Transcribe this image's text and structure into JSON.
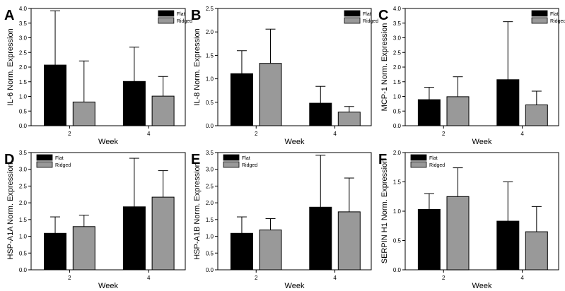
{
  "colors": {
    "flat": "#000000",
    "ridged": "#999999",
    "axis": "#000000"
  },
  "chart_data": [
    {
      "type": "bar",
      "letter": "A",
      "categories": [
        "2",
        "4"
      ],
      "xlabel": "Week",
      "ylabel": "IL-6 Norm. Expression",
      "ylim": [
        0,
        4.0
      ],
      "yticks": [
        "0.0",
        "0.5",
        "1.0",
        "1.5",
        "2.0",
        "2.5",
        "3.0",
        "3.5",
        "4.0"
      ],
      "series": [
        {
          "name": "Flat",
          "values": [
            2.07,
            1.51
          ],
          "errors": [
            1.85,
            1.17
          ]
        },
        {
          "name": "Ridged",
          "values": [
            0.81,
            1.01
          ],
          "errors": [
            1.4,
            0.67
          ]
        }
      ],
      "legend": "top-right"
    },
    {
      "type": "bar",
      "letter": "B",
      "categories": [
        "2",
        "4"
      ],
      "xlabel": "Week",
      "ylabel": "IL-8 Norm. Expression",
      "ylim": [
        0,
        2.5
      ],
      "yticks": [
        "0.0",
        "0.5",
        "1.0",
        "1.5",
        "2.0",
        "2.5"
      ],
      "series": [
        {
          "name": "Flat",
          "values": [
            1.11,
            0.48
          ],
          "errors": [
            0.49,
            0.36
          ]
        },
        {
          "name": "Ridged",
          "values": [
            1.33,
            0.29
          ],
          "errors": [
            0.73,
            0.12
          ]
        }
      ],
      "legend": "top-right"
    },
    {
      "type": "bar",
      "letter": "C",
      "categories": [
        "2",
        "4"
      ],
      "xlabel": "Week",
      "ylabel": "MCP-1 Norm. Expression",
      "ylim": [
        0,
        4.0
      ],
      "yticks": [
        "0.0",
        "0.5",
        "1.0",
        "1.5",
        "2.0",
        "2.5",
        "3.0",
        "3.5",
        "4.0"
      ],
      "series": [
        {
          "name": "Flat",
          "values": [
            0.89,
            1.57
          ],
          "errors": [
            0.42,
            1.98
          ]
        },
        {
          "name": "Ridged",
          "values": [
            0.99,
            0.71
          ],
          "errors": [
            0.68,
            0.47
          ]
        }
      ],
      "legend": "top-right"
    },
    {
      "type": "bar",
      "letter": "D",
      "categories": [
        "2",
        "4"
      ],
      "xlabel": "Week",
      "ylabel": "HSP-A1A Norm. Expression",
      "ylim": [
        0,
        3.5
      ],
      "yticks": [
        "0.0",
        "0.5",
        "1.0",
        "1.5",
        "2.0",
        "2.5",
        "3.0",
        "3.5"
      ],
      "series": [
        {
          "name": "Flat",
          "values": [
            1.09,
            1.88
          ],
          "errors": [
            0.49,
            1.45
          ]
        },
        {
          "name": "Ridged",
          "values": [
            1.29,
            2.17
          ],
          "errors": [
            0.34,
            0.79
          ]
        }
      ],
      "legend": "top-left"
    },
    {
      "type": "bar",
      "letter": "E",
      "categories": [
        "2",
        "4"
      ],
      "xlabel": "Week",
      "ylabel": "HSP-A1B Norm. Expression",
      "ylim": [
        0,
        3.5
      ],
      "yticks": [
        "0.0",
        "0.5",
        "1.0",
        "1.5",
        "2.0",
        "2.5",
        "3.0",
        "3.5"
      ],
      "series": [
        {
          "name": "Flat",
          "values": [
            1.09,
            1.87
          ],
          "errors": [
            0.49,
            1.55
          ]
        },
        {
          "name": "Ridged",
          "values": [
            1.19,
            1.73
          ],
          "errors": [
            0.34,
            1.01
          ]
        }
      ],
      "legend": "top-left"
    },
    {
      "type": "bar",
      "letter": "F",
      "categories": [
        "2",
        "4"
      ],
      "xlabel": "Week",
      "ylabel": "SERPIN H1 Norm. Expression",
      "ylim": [
        0,
        2.0
      ],
      "yticks": [
        "0.0",
        "0.5",
        "1.0",
        "1.5",
        "2.0"
      ],
      "series": [
        {
          "name": "Flat",
          "values": [
            1.03,
            0.83
          ],
          "errors": [
            0.27,
            0.67
          ]
        },
        {
          "name": "Ridged",
          "values": [
            1.25,
            0.65
          ],
          "errors": [
            0.49,
            0.43
          ]
        }
      ],
      "legend": "top-left"
    }
  ]
}
